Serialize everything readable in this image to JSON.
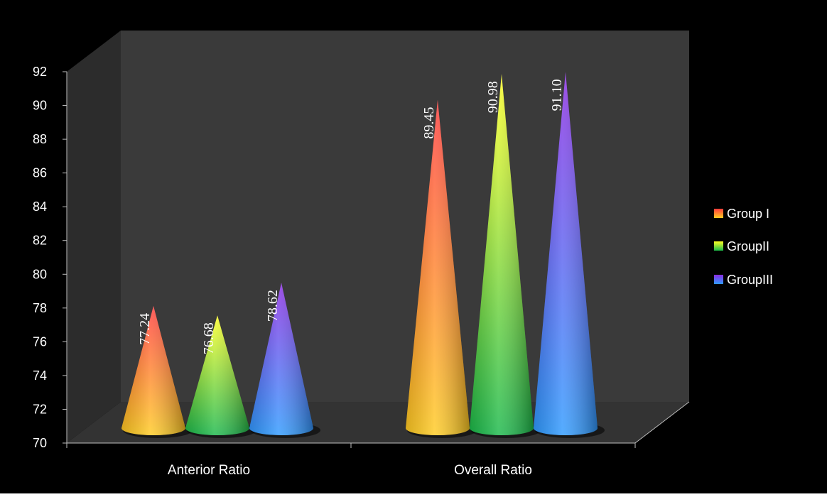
{
  "chart_data": {
    "type": "bar",
    "shape": "cone-3d",
    "categories": [
      "Anterior Ratio",
      "Overall Ratio"
    ],
    "series": [
      {
        "name": "Group I",
        "values": [
          77.24,
          89.45
        ]
      },
      {
        "name": "GroupII",
        "values": [
          76.68,
          90.98
        ]
      },
      {
        "name": "GroupIII",
        "values": [
          78.62,
          91.1
        ]
      }
    ],
    "data_labels": [
      [
        "77.24",
        "89.45"
      ],
      [
        "76.68",
        "90.98"
      ],
      [
        "78.62",
        "91.10"
      ]
    ],
    "yticks": [
      "70",
      "72",
      "74",
      "76",
      "78",
      "80",
      "82",
      "84",
      "86",
      "88",
      "90",
      "92"
    ],
    "ylim": [
      70,
      92
    ],
    "legend_position": "right",
    "grid": false,
    "colors": {
      "background": "#000000",
      "back_wall": "#3a3a3a",
      "side_wall": "#2c2c2c",
      "floor": "#333333",
      "axis": "#bfbfbf",
      "series": [
        {
          "top": "#ff3b3b",
          "bottom": "#ffcc22"
        },
        {
          "top": "#ffff22",
          "bottom": "#19b84a"
        },
        {
          "top": "#8a2be2",
          "bottom": "#2f9bff"
        }
      ]
    }
  }
}
